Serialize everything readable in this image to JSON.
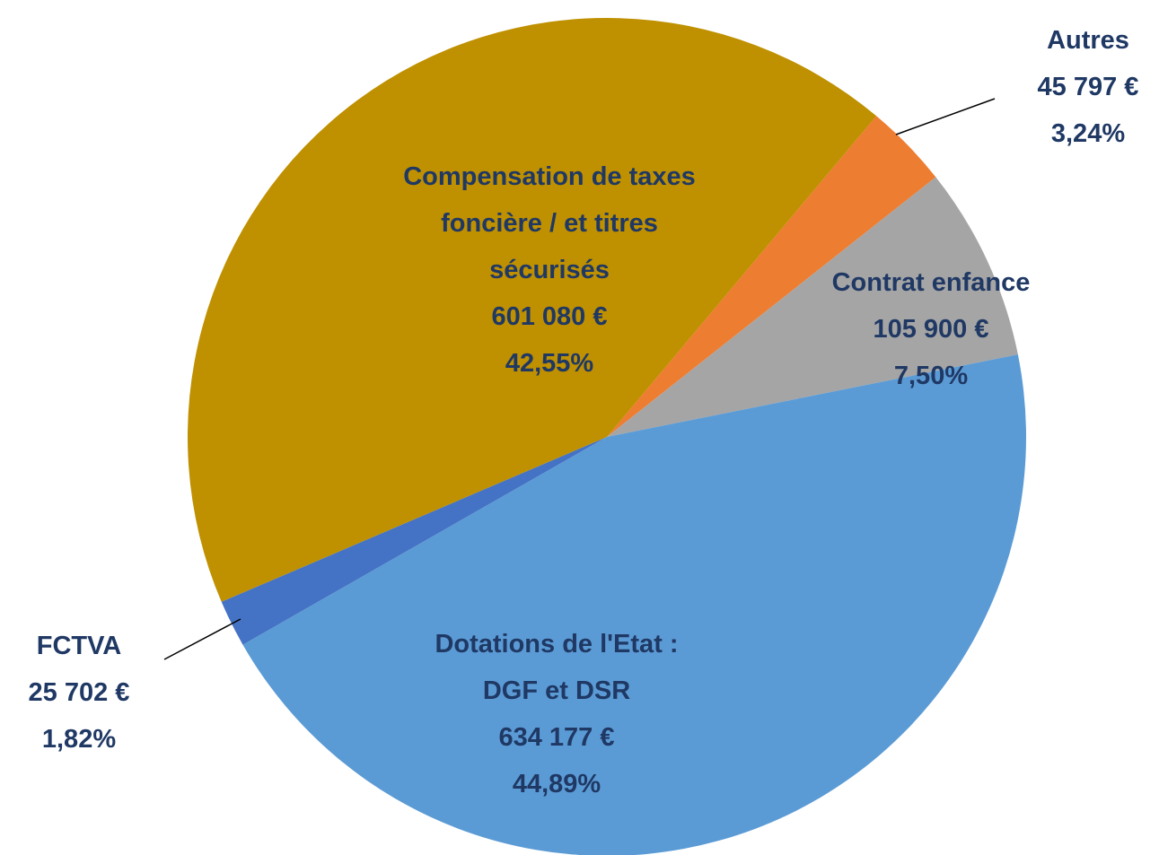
{
  "chart_data": {
    "type": "pie",
    "categories": [
      "Autres",
      "Contrat enfance",
      "Dotations de l'Etat : DGF et DSR",
      "FCTVA",
      "Compensation de taxes foncière / et titres sécurisés"
    ],
    "values": [
      45797,
      105900,
      634177,
      25702,
      601080
    ],
    "value_labels": [
      "45 797 €",
      "105 900 €",
      "634 177 €",
      "25 702 €",
      "601 080 €"
    ],
    "percentages": [
      3.24,
      7.5,
      44.89,
      1.82,
      42.55
    ],
    "percentage_labels": [
      "3,24%",
      "7,50%",
      "44,89%",
      "1,82%",
      "42,55%"
    ],
    "colors": [
      "#ed7d31",
      "#a5a5a5",
      "#5b9bd5",
      "#4472c4",
      "#bf9000"
    ]
  }
}
